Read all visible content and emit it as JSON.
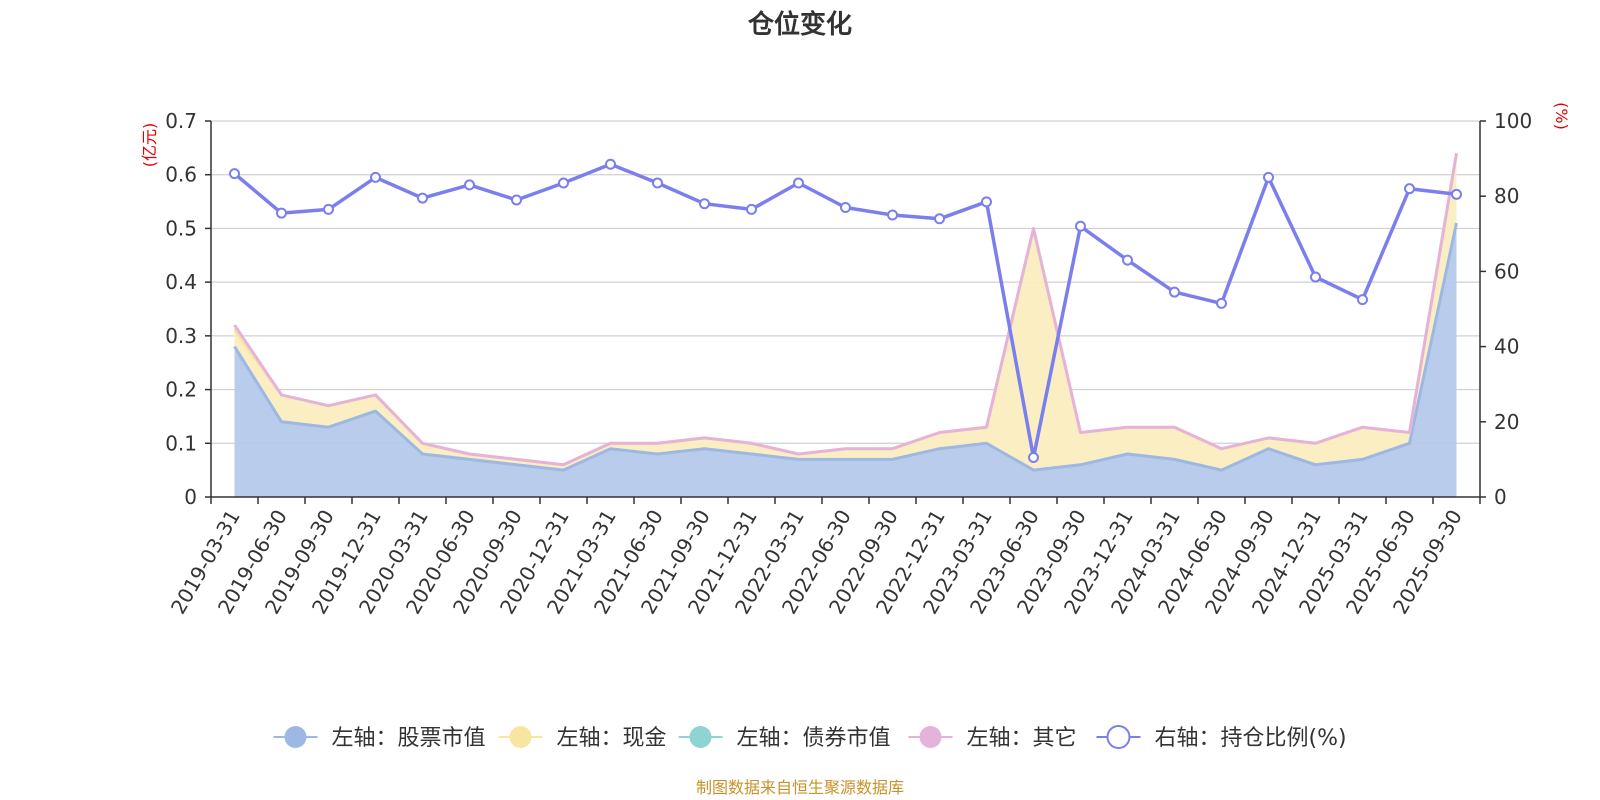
{
  "chart_data": {
    "type": "area",
    "title": "仓位变化",
    "left_unit": "(亿元)",
    "right_unit": "(%)",
    "left_ylim": [
      0,
      0.7
    ],
    "left_ticks": [
      "0",
      "0.1",
      "0.2",
      "0.3",
      "0.4",
      "0.5",
      "0.6",
      "0.7"
    ],
    "right_ylim": [
      0,
      100
    ],
    "right_ticks": [
      "0",
      "20",
      "40",
      "60",
      "80",
      "100"
    ],
    "categories": [
      "2019-03-31",
      "2019-06-30",
      "2019-09-30",
      "2019-12-31",
      "2020-03-31",
      "2020-06-30",
      "2020-09-30",
      "2020-12-31",
      "2021-03-31",
      "2021-06-30",
      "2021-09-30",
      "2021-12-31",
      "2022-03-31",
      "2022-06-30",
      "2022-09-30",
      "2022-12-31",
      "2023-03-31",
      "2023-06-30",
      "2023-09-30",
      "2023-12-31",
      "2024-03-31",
      "2024-06-30",
      "2024-09-30",
      "2024-12-31",
      "2025-03-31",
      "2025-06-30",
      "2025-09-30"
    ],
    "series": [
      {
        "name": "左轴：股票市值",
        "axis": "left",
        "color": "#9db8e2",
        "fill": "#b5c9ea",
        "values": [
          0.28,
          0.14,
          0.13,
          0.16,
          0.08,
          0.07,
          0.06,
          0.05,
          0.09,
          0.08,
          0.09,
          0.08,
          0.07,
          0.07,
          0.07,
          0.09,
          0.1,
          0.05,
          0.06,
          0.08,
          0.07,
          0.05,
          0.09,
          0.06,
          0.07,
          0.1,
          0.51
        ]
      },
      {
        "name": "左轴：现金",
        "axis": "left",
        "color": "#f7e6a2",
        "fill": "#faedbf",
        "values": [
          0.03,
          0.05,
          0.04,
          0.03,
          0.02,
          0.01,
          0.01,
          0.01,
          0.01,
          0.02,
          0.02,
          0.02,
          0.01,
          0.02,
          0.02,
          0.03,
          0.03,
          0.45,
          0.06,
          0.05,
          0.06,
          0.04,
          0.02,
          0.04,
          0.06,
          0.02,
          0.13
        ]
      },
      {
        "name": "左轴：债券市值",
        "axis": "left",
        "color": "#8fd3d3",
        "fill": "#b4e2e2",
        "values": [
          0,
          0,
          0,
          0,
          0,
          0,
          0,
          0,
          0,
          0,
          0,
          0,
          0,
          0,
          0,
          0,
          0,
          0,
          0,
          0,
          0,
          0,
          0,
          0,
          0,
          0,
          0
        ]
      },
      {
        "name": "左轴：其它",
        "axis": "left",
        "color": "#e5b3d9",
        "fill": "#f0cfe8",
        "values": [
          0.01,
          0,
          0,
          0,
          0,
          0,
          0,
          0,
          0,
          0,
          0,
          0,
          0,
          0,
          0,
          0,
          0,
          0,
          0,
          0,
          0,
          0,
          0,
          0,
          0,
          0,
          0
        ]
      },
      {
        "name": "右轴：持仓比例(%)",
        "axis": "right",
        "color": "#7b7fee",
        "values": [
          86,
          75.5,
          76.5,
          85,
          79.5,
          83,
          79,
          83.5,
          88.5,
          83.5,
          78,
          76.5,
          83.5,
          77,
          75,
          74,
          78.5,
          10.5,
          72,
          63,
          54.5,
          51.5,
          85,
          58.5,
          52.5,
          82,
          80.5
        ]
      }
    ]
  },
  "footer": {
    "source": "制图数据来自恒生聚源数据库"
  }
}
